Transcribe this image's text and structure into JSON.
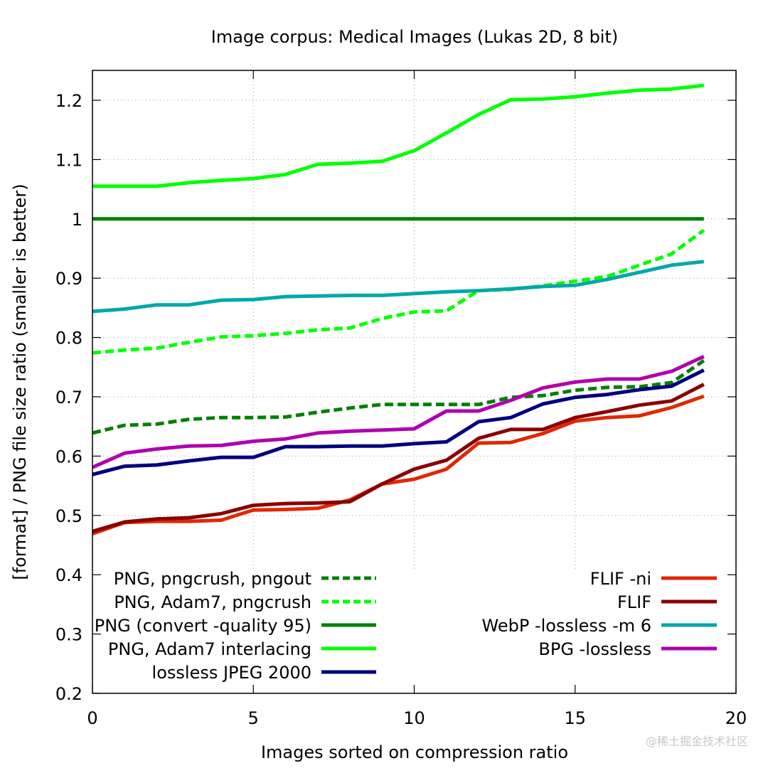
{
  "chart_data": {
    "type": "line",
    "title": "Image corpus: Medical Images (Lukas 2D, 8 bit)",
    "xlabel": "Images sorted on compression ratio",
    "ylabel": "[format] / PNG file size ratio (smaller is better)",
    "xlim": [
      0,
      20
    ],
    "ylim": [
      0.2,
      1.25
    ],
    "xticks": [
      0,
      5,
      10,
      15,
      20
    ],
    "xtick_labels": [
      "0",
      "5",
      "10",
      "15",
      "20"
    ],
    "yticks": [
      0.2,
      0.3,
      0.4,
      0.5,
      0.6,
      0.7,
      0.8,
      0.9,
      1.0,
      1.1,
      1.2
    ],
    "ytick_labels": [
      "0.2",
      "0.3",
      "0.4",
      "0.5",
      "0.6",
      "0.7",
      "0.8",
      "0.9",
      "1",
      "1.1",
      "1.2"
    ],
    "grid": true,
    "x": [
      0,
      1,
      2,
      3,
      4,
      5,
      6,
      7,
      8,
      9,
      10,
      11,
      12,
      13,
      14,
      15,
      16,
      17,
      18,
      19
    ],
    "legend_left": {
      "placement": "bottom-left",
      "entries": [
        0,
        1,
        2,
        3,
        4
      ]
    },
    "legend_right": {
      "placement": "bottom-right",
      "entries": [
        5,
        6,
        7,
        8
      ]
    },
    "series": [
      {
        "name": "PNG, pngcrush, pngout",
        "color": "#008000",
        "dashed": true,
        "values": [
          0.639,
          0.652,
          0.654,
          0.662,
          0.665,
          0.665,
          0.666,
          0.674,
          0.681,
          0.687,
          0.687,
          0.687,
          0.687,
          0.699,
          0.702,
          0.711,
          0.716,
          0.717,
          0.724,
          0.761
        ]
      },
      {
        "name": "PNG, Adam7, pngcrush",
        "color": "#00ff00",
        "dashed": true,
        "values": [
          0.774,
          0.779,
          0.782,
          0.792,
          0.801,
          0.803,
          0.807,
          0.813,
          0.816,
          0.832,
          0.843,
          0.845,
          0.879,
          0.881,
          0.887,
          0.895,
          0.903,
          0.922,
          0.941,
          0.981
        ]
      },
      {
        "name": "PNG (convert -quality 95)",
        "color": "#008000",
        "dashed": false,
        "values": [
          1,
          1,
          1,
          1,
          1,
          1,
          1,
          1,
          1,
          1,
          1,
          1,
          1,
          1,
          1,
          1,
          1,
          1,
          1,
          1
        ]
      },
      {
        "name": "PNG, Adam7 interlacing",
        "color": "#00ff00",
        "dashed": false,
        "values": [
          1.055,
          1.055,
          1.055,
          1.061,
          1.065,
          1.068,
          1.075,
          1.092,
          1.094,
          1.097,
          1.115,
          1.145,
          1.176,
          1.201,
          1.202,
          1.206,
          1.212,
          1.217,
          1.219,
          1.225
        ]
      },
      {
        "name": "lossless JPEG 2000",
        "color": "#000080",
        "dashed": false,
        "values": [
          0.569,
          0.583,
          0.585,
          0.592,
          0.598,
          0.598,
          0.616,
          0.616,
          0.617,
          0.617,
          0.621,
          0.624,
          0.658,
          0.665,
          0.688,
          0.699,
          0.704,
          0.712,
          0.718,
          0.745
        ]
      },
      {
        "name": "FLIF -ni",
        "color": "#e02800",
        "dashed": false,
        "values": [
          0.469,
          0.488,
          0.49,
          0.49,
          0.492,
          0.509,
          0.51,
          0.512,
          0.526,
          0.553,
          0.561,
          0.578,
          0.622,
          0.623,
          0.638,
          0.659,
          0.665,
          0.668,
          0.682,
          0.701
        ]
      },
      {
        "name": "FLIF",
        "color": "#8b0000",
        "dashed": false,
        "values": [
          0.473,
          0.489,
          0.494,
          0.496,
          0.503,
          0.517,
          0.52,
          0.521,
          0.523,
          0.553,
          0.578,
          0.593,
          0.63,
          0.645,
          0.645,
          0.665,
          0.675,
          0.686,
          0.693,
          0.721
        ]
      },
      {
        "name": "WebP -lossless -m 6",
        "color": "#00a8a8",
        "dashed": false,
        "values": [
          0.844,
          0.848,
          0.855,
          0.855,
          0.863,
          0.864,
          0.869,
          0.87,
          0.871,
          0.871,
          0.874,
          0.877,
          0.879,
          0.882,
          0.886,
          0.888,
          0.898,
          0.91,
          0.922,
          0.928
        ]
      },
      {
        "name": "BPG -lossless",
        "color": "#b000b0",
        "dashed": false,
        "values": [
          0.581,
          0.605,
          0.612,
          0.617,
          0.618,
          0.625,
          0.629,
          0.639,
          0.642,
          0.644,
          0.646,
          0.676,
          0.676,
          0.694,
          0.715,
          0.725,
          0.73,
          0.73,
          0.743,
          0.768
        ]
      }
    ]
  },
  "watermark": "@稀土掘金技术社区"
}
